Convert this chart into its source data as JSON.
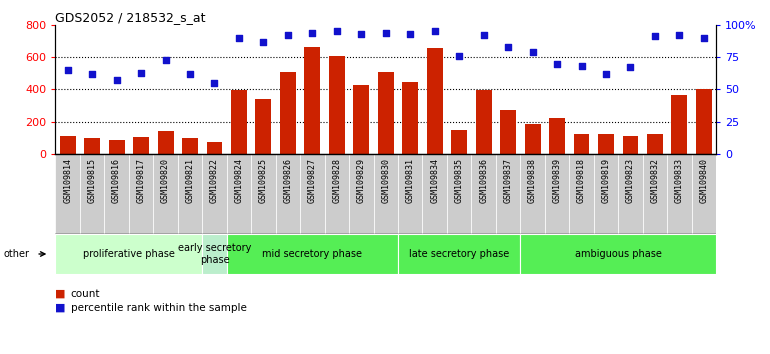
{
  "title": "GDS2052 / 218532_s_at",
  "samples": [
    "GSM109814",
    "GSM109815",
    "GSM109816",
    "GSM109817",
    "GSM109820",
    "GSM109821",
    "GSM109822",
    "GSM109824",
    "GSM109825",
    "GSM109826",
    "GSM109827",
    "GSM109828",
    "GSM109829",
    "GSM109830",
    "GSM109831",
    "GSM109834",
    "GSM109835",
    "GSM109836",
    "GSM109837",
    "GSM109838",
    "GSM109839",
    "GSM109818",
    "GSM109819",
    "GSM109823",
    "GSM109832",
    "GSM109833",
    "GSM109840"
  ],
  "counts": [
    110,
    100,
    85,
    105,
    145,
    100,
    72,
    395,
    340,
    510,
    660,
    605,
    430,
    510,
    445,
    655,
    150,
    395,
    270,
    185,
    225,
    125,
    125,
    110,
    125,
    365,
    400
  ],
  "percentiles": [
    65,
    62,
    57,
    63,
    73,
    62,
    55,
    90,
    87,
    92,
    94,
    95,
    93,
    94,
    93,
    95,
    76,
    92,
    83,
    79,
    70,
    68,
    62,
    67,
    91,
    92,
    90
  ],
  "bar_color": "#cc2200",
  "dot_color": "#1111cc",
  "ylim_left": [
    0,
    800
  ],
  "ylim_right": [
    0,
    100
  ],
  "yticks_left": [
    0,
    200,
    400,
    600,
    800
  ],
  "yticks_right": [
    0,
    25,
    50,
    75,
    100
  ],
  "phase_defs": [
    {
      "start": 0,
      "end": 6,
      "color": "#ccffcc",
      "label": "proliferative phase"
    },
    {
      "start": 6,
      "end": 7,
      "color": "#bbeecc",
      "label": "early secretory\nphase"
    },
    {
      "start": 7,
      "end": 14,
      "color": "#55ee55",
      "label": "mid secretory phase"
    },
    {
      "start": 14,
      "end": 19,
      "color": "#55ee55",
      "label": "late secretory phase"
    },
    {
      "start": 19,
      "end": 27,
      "color": "#55ee55",
      "label": "ambiguous phase"
    }
  ],
  "other_label": "other",
  "legend_count_label": "count",
  "legend_pct_label": "percentile rank within the sample",
  "tick_bg_color": "#cccccc",
  "tick_fontsize": 6,
  "axis_fontsize": 8,
  "title_fontsize": 9,
  "phase_fontsize": 7
}
